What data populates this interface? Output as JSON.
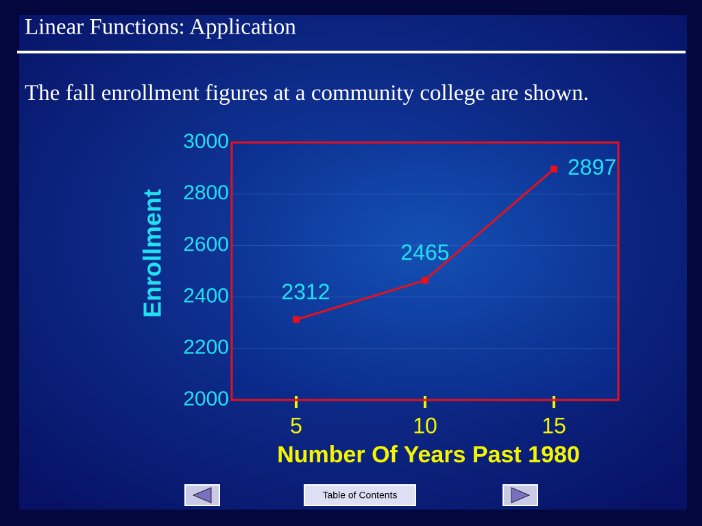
{
  "header": {
    "title": "Linear Functions: Application"
  },
  "body": {
    "text": "The fall enrollment figures at a community college are shown."
  },
  "chart_data": {
    "type": "line",
    "x": [
      5,
      10,
      15
    ],
    "values": [
      2312,
      2465,
      2897
    ],
    "color": "#e8101a",
    "xlabel": "Number Of Years Past 1980",
    "ylabel": "Enrollment",
    "xlim": [
      2.5,
      17.5
    ],
    "xticks": [
      5,
      10,
      15
    ],
    "ylim": [
      2000,
      3000
    ],
    "yticks": [
      2000,
      2200,
      2400,
      2600,
      2800,
      3000
    ],
    "grid": true
  },
  "navigation": {
    "toc": "Table of Contents"
  }
}
